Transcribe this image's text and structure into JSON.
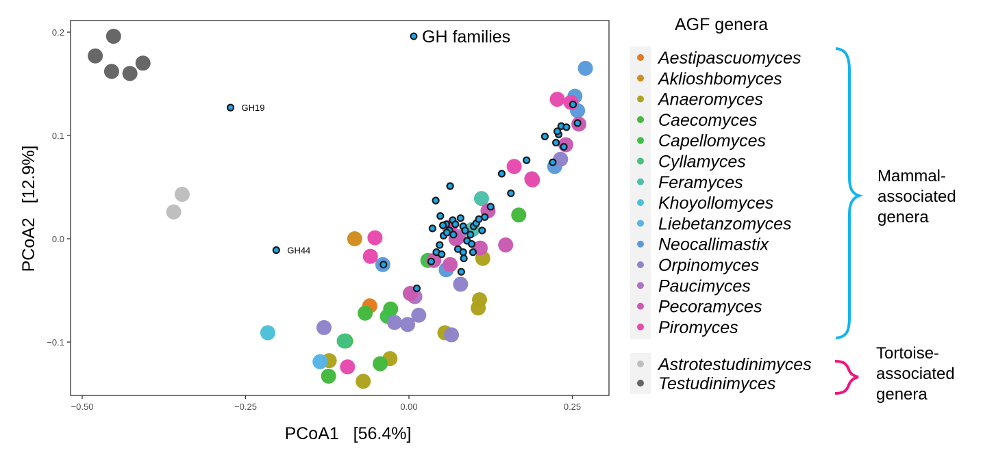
{
  "chart_data": {
    "type": "scatter",
    "title": "",
    "xlabel": "PCoA1   [56.4%]",
    "ylabel": "PCoA2   [12.9%]",
    "xlim": [
      -0.52,
      0.31
    ],
    "ylim": [
      -0.152,
      0.212
    ],
    "xticks": [
      -0.5,
      -0.25,
      0.0,
      0.25
    ],
    "xtick_labels": [
      "−0.50",
      "−0.25",
      "0.00",
      "0.25"
    ],
    "yticks": [
      -0.1,
      0.0,
      0.1,
      0.2
    ],
    "ytick_labels": [
      "−0.1",
      "0.0",
      "0.1",
      "0.2"
    ],
    "grid": false,
    "legend_title": "AGF genera",
    "legend_placement": "right",
    "series": [
      {
        "name": "Aestipascuomyces",
        "color": "#E57A1D",
        "group": "mammal",
        "points": [
          [
            -0.06,
            -0.065
          ]
        ]
      },
      {
        "name": "Aklioshbomyces",
        "color": "#D18E1F",
        "group": "mammal",
        "points": [
          [
            -0.083,
            0.0
          ]
        ]
      },
      {
        "name": "Anaeromyces",
        "color": "#ADA31F",
        "group": "mammal",
        "points": [
          [
            0.113,
            -0.019
          ],
          [
            0.108,
            -0.059
          ],
          [
            0.106,
            -0.067
          ],
          [
            0.055,
            -0.091
          ],
          [
            -0.122,
            -0.118
          ],
          [
            -0.07,
            -0.138
          ],
          [
            -0.029,
            -0.116
          ]
        ]
      },
      {
        "name": "Caecomyces",
        "color": "#43B93E",
        "group": "mammal",
        "points": [
          [
            -0.067,
            -0.072
          ],
          [
            -0.028,
            -0.068
          ],
          [
            0.168,
            0.023
          ],
          [
            -0.097,
            -0.099
          ],
          [
            -0.123,
            -0.133
          ],
          [
            -0.044,
            -0.121
          ]
        ]
      },
      {
        "name": "Capellomyces",
        "color": "#3FBE47",
        "group": "mammal",
        "points": [
          [
            -0.033,
            -0.075
          ],
          [
            0.029,
            -0.021
          ]
        ]
      },
      {
        "name": "Cyllamyces",
        "color": "#44C17F",
        "group": "mammal",
        "points": [
          [
            -0.099,
            -0.099
          ]
        ]
      },
      {
        "name": "Feramyces",
        "color": "#4CC1AA",
        "group": "mammal",
        "points": [
          [
            0.111,
            0.039
          ],
          [
            0.097,
            0.009
          ]
        ]
      },
      {
        "name": "Khoyollomyces",
        "color": "#4BC1D9",
        "group": "mammal",
        "points": [
          [
            -0.216,
            -0.091
          ]
        ]
      },
      {
        "name": "Liebetanzomyces",
        "color": "#56B5E8",
        "group": "mammal",
        "points": [
          [
            -0.136,
            -0.119
          ]
        ]
      },
      {
        "name": "Neocallimastix",
        "color": "#5B9BDA",
        "group": "mammal",
        "points": [
          [
            0.27,
            0.165
          ],
          [
            -0.04,
            -0.025
          ],
          [
            0.057,
            -0.03
          ],
          [
            0.258,
            0.124
          ],
          [
            0.223,
            0.07
          ],
          [
            0.254,
            0.138
          ]
        ]
      },
      {
        "name": "Orpinomyces",
        "color": "#8F84CB",
        "group": "mammal",
        "points": [
          [
            -0.13,
            -0.086
          ],
          [
            -0.022,
            -0.081
          ],
          [
            -0.002,
            -0.083
          ],
          [
            0.015,
            -0.074
          ],
          [
            0.079,
            -0.044
          ],
          [
            0.065,
            -0.093
          ],
          [
            0.232,
            0.077
          ]
        ]
      },
      {
        "name": "Paucimyces",
        "color": "#B072C4",
        "group": "mammal",
        "points": [
          [
            0.009,
            -0.056
          ],
          [
            0.076,
            0.002
          ]
        ]
      },
      {
        "name": "Pecoramyces",
        "color": "#C95BB1",
        "group": "mammal",
        "points": [
          [
            0.121,
            0.027
          ],
          [
            0.148,
            -0.006
          ],
          [
            0.109,
            -0.009
          ],
          [
            0.063,
            -0.025
          ],
          [
            0.038,
            -0.021
          ],
          [
            0.072,
            0.0
          ],
          [
            0.002,
            -0.053
          ],
          [
            0.26,
            0.111
          ],
          [
            0.24,
            0.091
          ],
          [
            0.188,
            0.058
          ]
        ]
      },
      {
        "name": "Piromyces",
        "color": "#E84AAD",
        "group": "mammal",
        "points": [
          [
            -0.052,
            0.001
          ],
          [
            -0.059,
            -0.017
          ],
          [
            0.227,
            0.135
          ],
          [
            0.248,
            0.132
          ],
          [
            0.161,
            0.07
          ],
          [
            0.189,
            0.057
          ],
          [
            -0.094,
            -0.124
          ],
          [
            0.062,
            0.011
          ]
        ]
      },
      {
        "name": "Astrotestudinimyces",
        "color": "#BEBEBE",
        "group": "tortoise",
        "points": [
          [
            -0.347,
            0.043
          ],
          [
            -0.36,
            0.026
          ]
        ]
      },
      {
        "name": "Testudinimyces",
        "color": "#646464",
        "group": "tortoise",
        "points": [
          [
            -0.48,
            0.177
          ],
          [
            -0.452,
            0.196
          ],
          [
            -0.455,
            0.162
          ],
          [
            -0.427,
            0.16
          ],
          [
            -0.407,
            0.17
          ]
        ]
      }
    ],
    "gh_families": {
      "name": "GH families",
      "fill": "#1AA7E8",
      "stroke": "#1A1A1A",
      "points": [
        [
          -0.273,
          0.127
        ],
        [
          -0.203,
          -0.011
        ],
        [
          -0.039,
          -0.025
        ],
        [
          0.012,
          -0.048
        ],
        [
          0.08,
          -0.032
        ],
        [
          0.048,
          0.022
        ],
        [
          0.057,
          0.014
        ],
        [
          0.041,
          0.037
        ],
        [
          0.063,
          0.051
        ],
        [
          0.036,
          0.01
        ],
        [
          0.053,
          0.003
        ],
        [
          0.062,
          0.008
        ],
        [
          0.067,
          0.018
        ],
        [
          0.071,
          0.014
        ],
        [
          0.068,
          0.004
        ],
        [
          0.052,
          0.013
        ],
        [
          0.058,
          0.006
        ],
        [
          0.047,
          -0.006
        ],
        [
          0.042,
          -0.013
        ],
        [
          0.05,
          -0.015
        ],
        [
          0.034,
          -0.022
        ],
        [
          0.075,
          -0.01
        ],
        [
          0.079,
          0.02
        ],
        [
          0.083,
          0.012
        ],
        [
          0.086,
          0.008
        ],
        [
          0.089,
          -0.002
        ],
        [
          0.094,
          0.004
        ],
        [
          0.099,
          0.012
        ],
        [
          0.103,
          0.015
        ],
        [
          0.096,
          -0.005
        ],
        [
          0.083,
          -0.013
        ],
        [
          0.084,
          -0.019
        ],
        [
          0.098,
          -0.013
        ],
        [
          0.112,
          0.008
        ],
        [
          0.116,
          0.021
        ],
        [
          0.125,
          0.031
        ],
        [
          0.142,
          0.063
        ],
        [
          0.156,
          0.044
        ],
        [
          0.18,
          0.076
        ],
        [
          0.208,
          0.099
        ],
        [
          0.22,
          0.074
        ],
        [
          0.225,
          0.093
        ],
        [
          0.229,
          0.101
        ],
        [
          0.233,
          0.109
        ],
        [
          0.241,
          0.108
        ],
        [
          0.237,
          0.089
        ],
        [
          0.251,
          0.13
        ],
        [
          0.258,
          0.112
        ],
        [
          0.227,
          0.104
        ],
        [
          0.107,
          0.019
        ]
      ],
      "labels": [
        {
          "text": "GH19",
          "point_index": 0
        },
        {
          "text": "GH44",
          "point_index": 1
        }
      ]
    }
  },
  "legend": {
    "title": "AGF genera",
    "gh_legend_label": "GH families",
    "mammal_group_label": [
      "Mammal-",
      "associated",
      "genera"
    ],
    "tortoise_group_label": [
      "Tortoise-",
      "associated",
      "genera"
    ],
    "mammal_brace_color": "#13B4EE",
    "tortoise_brace_color": "#F0147F"
  }
}
